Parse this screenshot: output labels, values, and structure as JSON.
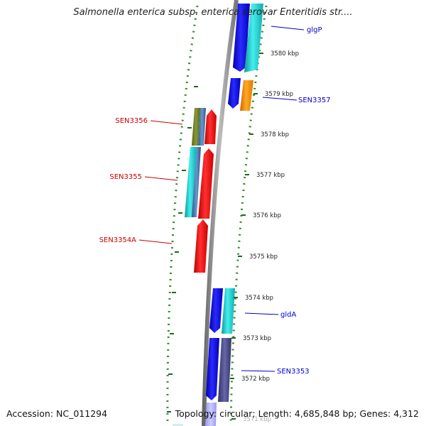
{
  "header": {
    "title": "Salmonella enterica subsp. enterica serovar Enteritidis str...."
  },
  "footer": {
    "accession": "Accession: NC_011294",
    "topology": "Topology: circular; Length: 4,685,848 bp; Genes: 4,312"
  },
  "colors": {
    "backbone": "#888888",
    "gc_skew_dots": "#2e8b2e",
    "tick_marks": "#1a6b1a",
    "red_gene": "#ee1111",
    "blue_gene": "#1010dd",
    "cyan_gene": "#22cccc",
    "orange_gene": "#ee8800",
    "olive_gene": "#667722",
    "steel_gene": "#4477aa",
    "slate_gene": "#555588",
    "label_red": "#cc0000",
    "label_blue": "#0000cc"
  },
  "scale_ticks": [
    {
      "label": "3580 kbp"
    },
    {
      "label": "3579 kbp"
    },
    {
      "label": "3578 kbp"
    },
    {
      "label": "3577 kbp"
    },
    {
      "label": "3576 kbp"
    },
    {
      "label": "3575 kbp"
    },
    {
      "label": "3574 kbp"
    },
    {
      "label": "3573 kbp"
    },
    {
      "label": "3572 kbp"
    },
    {
      "label": "3571 kbp"
    }
  ],
  "gene_labels": [
    {
      "name": "glgP",
      "color": "blue"
    },
    {
      "name": "SEN3357",
      "color": "blue"
    },
    {
      "name": "SEN3356",
      "color": "red"
    },
    {
      "name": "SEN3355",
      "color": "red"
    },
    {
      "name": "SEN3354A",
      "color": "red"
    },
    {
      "name": "gldA",
      "color": "blue"
    },
    {
      "name": "SEN3353",
      "color": "blue"
    }
  ]
}
